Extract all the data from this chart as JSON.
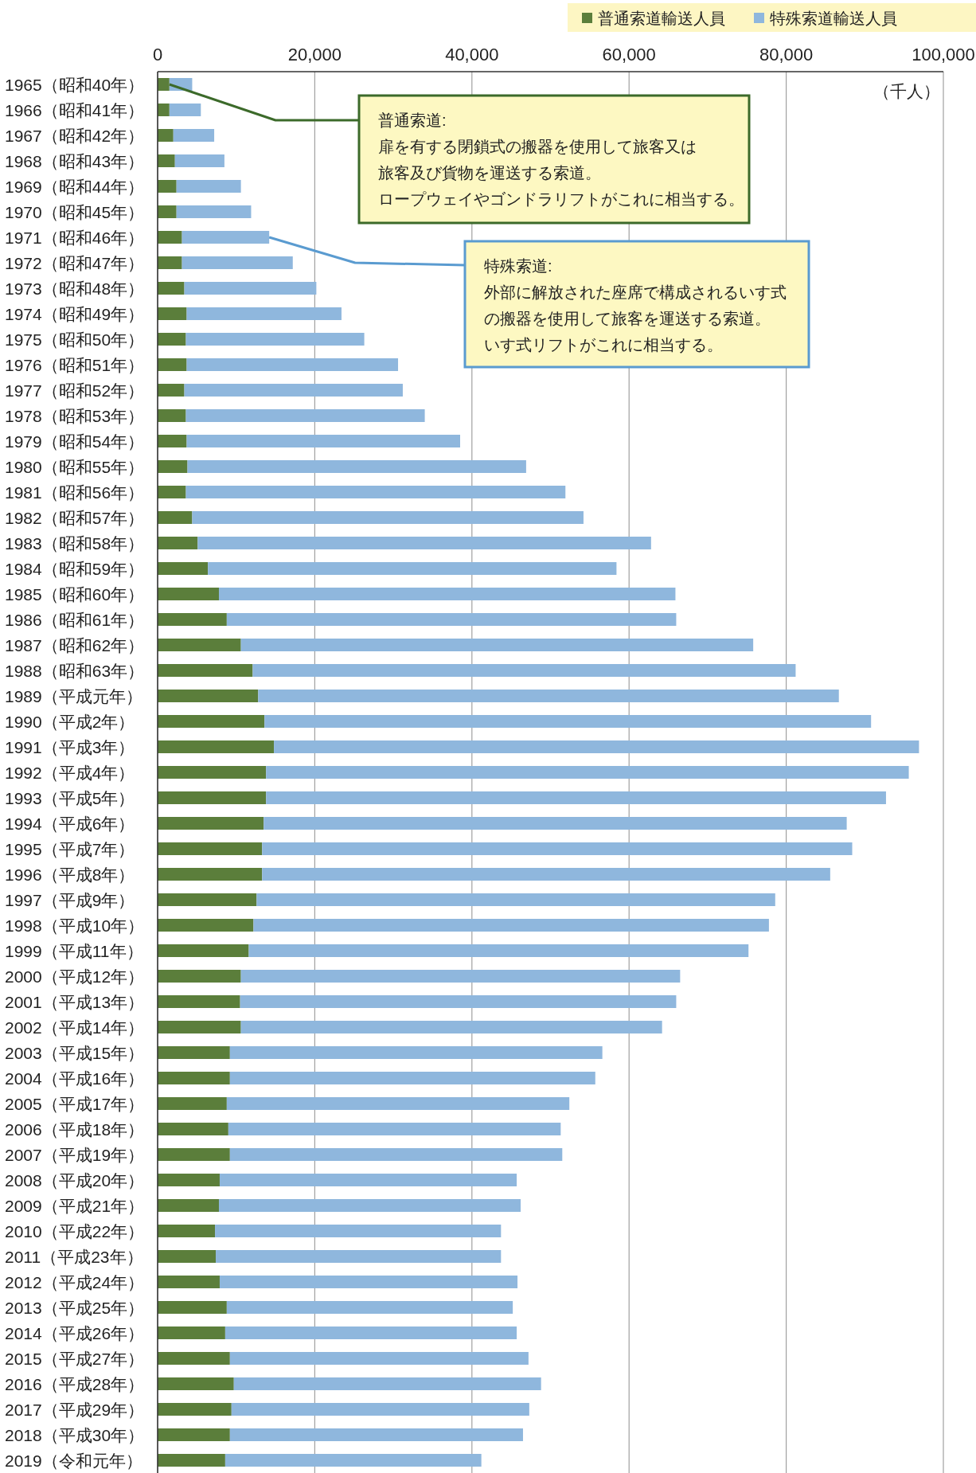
{
  "chart_data": {
    "type": "bar",
    "orientation": "horizontal",
    "stacked": true,
    "xlabel": "（千人）",
    "legend": "top right",
    "grid": "x",
    "xlim": [
      0,
      100000
    ],
    "xticks": [
      0,
      {
        "value": 20000,
        "label": "20,000"
      },
      {
        "value": 40000,
        "label": "40,000"
      },
      {
        "value": 60000,
        "label": "60,000"
      },
      {
        "value": 80000,
        "label": "80,000"
      },
      {
        "value": 100000,
        "label": "100,000"
      }
    ],
    "categories": [
      "1965（昭和40年）",
      "1966（昭和41年）",
      "1967（昭和42年）",
      "1968（昭和43年）",
      "1969（昭和44年）",
      "1970（昭和45年）",
      "1971（昭和46年）",
      "1972（昭和47年）",
      "1973（昭和48年）",
      "1974（昭和49年）",
      "1975（昭和50年）",
      "1976（昭和51年）",
      "1977（昭和52年）",
      "1978（昭和53年）",
      "1979（昭和54年）",
      "1980（昭和55年）",
      "1981（昭和56年）",
      "1982（昭和57年）",
      "1983（昭和58年）",
      "1984（昭和59年）",
      "1985（昭和60年）",
      "1986（昭和61年）",
      "1987（昭和62年）",
      "1988（昭和63年）",
      "1989（平成元年）",
      "1990（平成2年）",
      "1991（平成3年）",
      "1992（平成4年）",
      "1993（平成5年）",
      "1994（平成6年）",
      "1995（平成7年）",
      "1996（平成8年）",
      "1997（平成9年）",
      "1998（平成10年）",
      "1999（平成11年）",
      "2000（平成12年）",
      "2001（平成13年）",
      "2002（平成14年）",
      "2003（平成15年）",
      "2004（平成16年）",
      "2005（平成17年）",
      "2006（平成18年）",
      "2007（平成19年）",
      "2008（平成20年）",
      "2009（平成21年）",
      "2010（平成22年）",
      "2011（平成23年）",
      "2012（平成24年）",
      "2013（平成25年）",
      "2014（平成26年）",
      "2015（平成27年）",
      "2016（平成28年）",
      "2017（平成29年）",
      "2018（平成30年）",
      "2019（令和元年）"
    ],
    "series": [
      {
        "name": "普通索道輸送人員",
        "color": "#5b7e3b",
        "values": [
          1500,
          1500,
          2000,
          2200,
          2400,
          2400,
          3100,
          3100,
          3400,
          3700,
          3600,
          3700,
          3400,
          3600,
          3700,
          3800,
          3600,
          4400,
          5100,
          6400,
          7800,
          8800,
          10600,
          12100,
          12800,
          13600,
          14800,
          13800,
          13800,
          13500,
          13300,
          13300,
          12600,
          12200,
          11600,
          10600,
          10500,
          10600,
          9200,
          9200,
          8800,
          9000,
          9200,
          7900,
          7800,
          7300,
          7400,
          7900,
          8800,
          8600,
          9200,
          9700,
          9400,
          9200,
          8600
        ]
      },
      {
        "name": "特殊索道輸送人員",
        "color": "#8fb7dd",
        "values": [
          2900,
          4000,
          5200,
          6300,
          8200,
          9500,
          11100,
          14100,
          16800,
          19700,
          22700,
          26900,
          27800,
          30400,
          34800,
          43100,
          48300,
          49800,
          57700,
          52000,
          58100,
          57200,
          65200,
          69100,
          73900,
          77200,
          82100,
          81800,
          78900,
          74200,
          75100,
          72300,
          66000,
          65600,
          63600,
          55900,
          55500,
          53600,
          47400,
          46500,
          43600,
          42300,
          42300,
          37800,
          38400,
          36400,
          36300,
          37900,
          36400,
          37100,
          38000,
          39100,
          37900,
          37300,
          32600
        ]
      }
    ],
    "annotations": [
      {
        "text": "普通索道:",
        "x": 1500,
        "y": "1965（昭和40年）"
      },
      "扉を有する閉鎖式の搬器を使用して旅客又は",
      "旅客及び貨物を運送する索道。",
      "ロープウェイやゴンドラリフトがこれに相当する。",
      {
        "text": "特殊索道:",
        "x": 14200,
        "y": "1971（昭和46年）"
      },
      "外部に解放された座席で構成されるいす式",
      "の搬器を使用して旅客を運送する索道。",
      "いす式リフトがこれに相当する。"
    ]
  }
}
